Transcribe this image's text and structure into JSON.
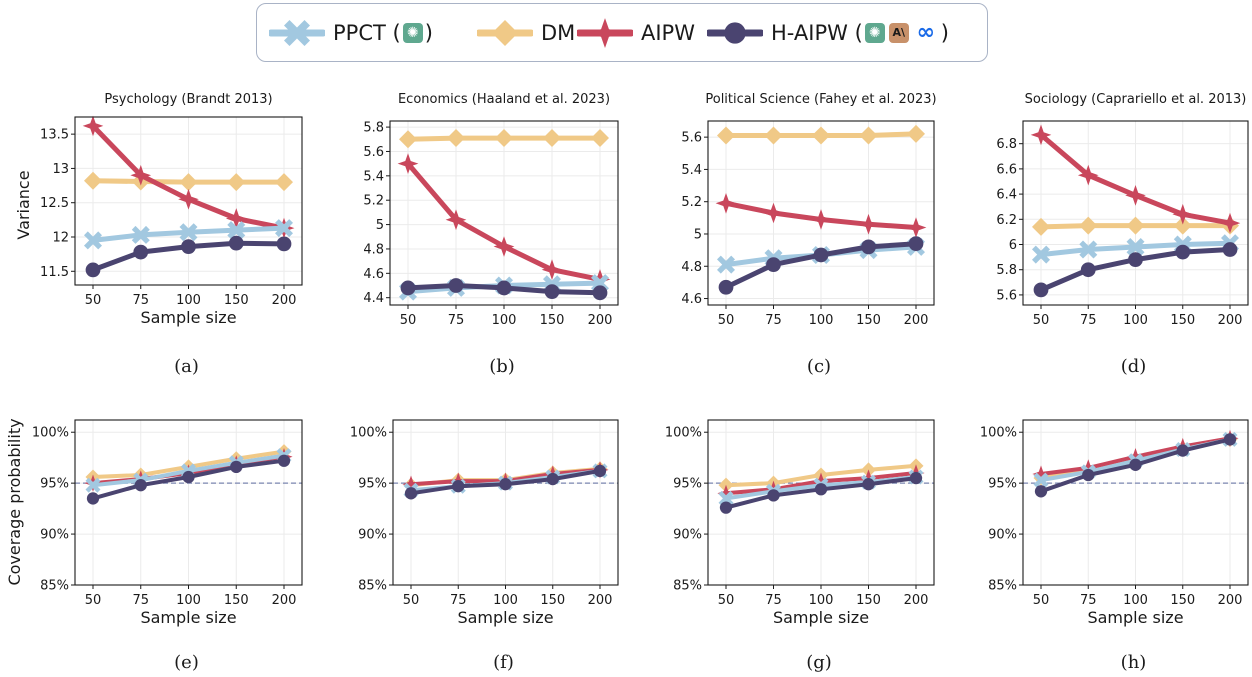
{
  "legend": {
    "items": [
      {
        "label": "PPCT (",
        "suffix": ")",
        "color": "#a2c8e0",
        "marker": "x",
        "logos": [
          "openai"
        ]
      },
      {
        "label": "DM",
        "suffix": "",
        "color": "#f0c987",
        "marker": "diamond",
        "logos": []
      },
      {
        "label": "AIPW",
        "suffix": "",
        "color": "#c9475c",
        "marker": "star",
        "logos": []
      },
      {
        "label": "H-AIPW (",
        "suffix": ")",
        "color": "#4a4470",
        "marker": "circle",
        "logos": [
          "openai",
          "anthropic",
          "meta"
        ]
      }
    ],
    "logo_text": {
      "openai": "✺",
      "anthropic": "A\\",
      "meta": "∞"
    },
    "logo_colors": {
      "openai": "#5fa88f",
      "anthropic": "#c8916a",
      "meta": "#1b6be8"
    }
  },
  "axis_labels": {
    "xlabel": "Sample size",
    "ylabel_top": "Variance",
    "ylabel_bottom": "Coverage probability"
  },
  "chart_data": [
    {
      "type": "line",
      "panel": "(a)",
      "title": "Psychology (Brandt 2013)",
      "row": "variance",
      "categories": [
        "50",
        "75",
        "100",
        "150",
        "200"
      ],
      "ylim": [
        11.3,
        13.75
      ],
      "yticks": [
        11.5,
        12,
        12.5,
        13,
        13.5
      ],
      "yticklabels": [
        "11.5",
        "12",
        "12.5",
        "13",
        "13.5"
      ],
      "grid": true,
      "show_xlabel": true,
      "series": [
        {
          "name": "DM",
          "values": [
            12.82,
            12.81,
            12.8,
            12.8,
            12.8
          ]
        },
        {
          "name": "AIPW",
          "values": [
            13.62,
            12.9,
            12.55,
            12.27,
            12.13
          ]
        },
        {
          "name": "PPCT",
          "values": [
            11.95,
            12.03,
            12.07,
            12.1,
            12.13
          ]
        },
        {
          "name": "H-AIPW",
          "values": [
            11.52,
            11.78,
            11.86,
            11.91,
            11.9
          ]
        }
      ]
    },
    {
      "type": "line",
      "panel": "(b)",
      "title": "Economics (Haaland et al. 2023)",
      "row": "variance",
      "categories": [
        "50",
        "75",
        "100",
        "150",
        "200"
      ],
      "ylim": [
        4.34,
        5.85
      ],
      "yticks": [
        4.4,
        4.6,
        4.8,
        5.0,
        5.2,
        5.4,
        5.6,
        5.8
      ],
      "yticklabels": [
        "4.4",
        "4.6",
        "4.8",
        "5",
        "5.2",
        "5.4",
        "5.6",
        "5.8"
      ],
      "grid": true,
      "show_xlabel": false,
      "series": [
        {
          "name": "DM",
          "values": [
            5.7,
            5.71,
            5.71,
            5.71,
            5.71
          ]
        },
        {
          "name": "AIPW",
          "values": [
            5.5,
            5.04,
            4.82,
            4.63,
            4.55
          ]
        },
        {
          "name": "PPCT",
          "values": [
            4.45,
            4.48,
            4.5,
            4.51,
            4.52
          ]
        },
        {
          "name": "H-AIPW",
          "values": [
            4.48,
            4.5,
            4.48,
            4.45,
            4.44
          ]
        }
      ]
    },
    {
      "type": "line",
      "panel": "(c)",
      "title": "Political Science (Fahey et al. 2023)",
      "row": "variance",
      "categories": [
        "50",
        "75",
        "100",
        "150",
        "200"
      ],
      "ylim": [
        4.56,
        5.7
      ],
      "yticks": [
        4.6,
        4.8,
        5.0,
        5.2,
        5.4,
        5.6
      ],
      "yticklabels": [
        "4.6",
        "4.8",
        "5",
        "5.2",
        "5.4",
        "5.6"
      ],
      "grid": true,
      "show_xlabel": false,
      "series": [
        {
          "name": "DM",
          "values": [
            5.61,
            5.61,
            5.61,
            5.61,
            5.62
          ]
        },
        {
          "name": "AIPW",
          "values": [
            5.19,
            5.13,
            5.09,
            5.06,
            5.04
          ]
        },
        {
          "name": "PPCT",
          "values": [
            4.81,
            4.85,
            4.87,
            4.9,
            4.92
          ]
        },
        {
          "name": "H-AIPW",
          "values": [
            4.67,
            4.81,
            4.87,
            4.92,
            4.94
          ]
        }
      ]
    },
    {
      "type": "line",
      "panel": "(d)",
      "title": "Sociology (Caprariello et al. 2013)",
      "row": "variance",
      "categories": [
        "50",
        "75",
        "100",
        "150",
        "200"
      ],
      "ylim": [
        5.52,
        6.98
      ],
      "yticks": [
        5.6,
        5.8,
        6.0,
        6.2,
        6.4,
        6.6,
        6.8
      ],
      "yticklabels": [
        "5.6",
        "5.8",
        "6",
        "6.2",
        "6.4",
        "6.6",
        "6.8"
      ],
      "grid": true,
      "show_xlabel": false,
      "series": [
        {
          "name": "DM",
          "values": [
            6.14,
            6.15,
            6.15,
            6.15,
            6.15
          ]
        },
        {
          "name": "AIPW",
          "values": [
            6.87,
            6.55,
            6.39,
            6.24,
            6.17
          ]
        },
        {
          "name": "PPCT",
          "values": [
            5.92,
            5.96,
            5.98,
            6.0,
            6.01
          ]
        },
        {
          "name": "H-AIPW",
          "values": [
            5.64,
            5.8,
            5.88,
            5.94,
            5.96
          ]
        }
      ]
    },
    {
      "type": "line",
      "panel": "(e)",
      "title": "",
      "row": "coverage",
      "categories": [
        "50",
        "75",
        "100",
        "150",
        "200"
      ],
      "ylim": [
        85,
        101.2
      ],
      "yticks": [
        85,
        90,
        95,
        100
      ],
      "yticklabels": [
        "85%",
        "90%",
        "95%",
        "100%"
      ],
      "grid": true,
      "show_xlabel": true,
      "reference_line": 95,
      "series": [
        {
          "name": "DM",
          "values": [
            95.6,
            95.8,
            96.6,
            97.4,
            98.1
          ]
        },
        {
          "name": "AIPW",
          "values": [
            95.0,
            95.4,
            96.0,
            96.9,
            97.6
          ]
        },
        {
          "name": "PPCT",
          "values": [
            94.8,
            95.3,
            96.2,
            97.0,
            97.7
          ]
        },
        {
          "name": "H-AIPW",
          "values": [
            93.5,
            94.8,
            95.6,
            96.6,
            97.2
          ]
        }
      ]
    },
    {
      "type": "line",
      "panel": "(f)",
      "title": "",
      "row": "coverage",
      "categories": [
        "50",
        "75",
        "100",
        "150",
        "200"
      ],
      "ylim": [
        85,
        101.2
      ],
      "yticks": [
        85,
        90,
        95,
        100
      ],
      "yticklabels": [
        "85%",
        "90%",
        "95%",
        "100%"
      ],
      "grid": true,
      "show_xlabel": true,
      "reference_line": 95,
      "series": [
        {
          "name": "DM",
          "values": [
            94.8,
            95.3,
            95.3,
            96.0,
            96.4
          ]
        },
        {
          "name": "AIPW",
          "values": [
            94.9,
            95.2,
            95.2,
            95.9,
            96.3
          ]
        },
        {
          "name": "PPCT",
          "values": [
            94.3,
            94.7,
            95.0,
            95.6,
            96.2
          ]
        },
        {
          "name": "H-AIPW",
          "values": [
            94.0,
            94.7,
            94.9,
            95.4,
            96.2
          ]
        }
      ]
    },
    {
      "type": "line",
      "panel": "(g)",
      "title": "",
      "row": "coverage",
      "categories": [
        "50",
        "75",
        "100",
        "150",
        "200"
      ],
      "ylim": [
        85,
        101.2
      ],
      "yticks": [
        85,
        90,
        95,
        100
      ],
      "yticklabels": [
        "85%",
        "90%",
        "95%",
        "100%"
      ],
      "grid": true,
      "show_xlabel": true,
      "reference_line": 95,
      "series": [
        {
          "name": "DM",
          "values": [
            94.8,
            95.0,
            95.8,
            96.3,
            96.7
          ]
        },
        {
          "name": "AIPW",
          "values": [
            94.0,
            94.4,
            95.2,
            95.5,
            96.0
          ]
        },
        {
          "name": "PPCT",
          "values": [
            93.5,
            94.2,
            94.8,
            95.1,
            95.6
          ]
        },
        {
          "name": "H-AIPW",
          "values": [
            92.6,
            93.8,
            94.4,
            94.9,
            95.5
          ]
        }
      ]
    },
    {
      "type": "line",
      "panel": "(h)",
      "title": "",
      "row": "coverage",
      "categories": [
        "50",
        "75",
        "100",
        "150",
        "200"
      ],
      "ylim": [
        85,
        101.2
      ],
      "yticks": [
        85,
        90,
        95,
        100
      ],
      "yticklabels": [
        "85%",
        "90%",
        "95%",
        "100%"
      ],
      "grid": true,
      "show_xlabel": true,
      "reference_line": 95,
      "series": [
        {
          "name": "DM",
          "values": [
            95.5,
            96.2,
            97.2,
            98.4,
            99.3
          ]
        },
        {
          "name": "AIPW",
          "values": [
            95.9,
            96.5,
            97.6,
            98.6,
            99.4
          ]
        },
        {
          "name": "PPCT",
          "values": [
            95.3,
            96.1,
            97.2,
            98.3,
            99.3
          ]
        },
        {
          "name": "H-AIPW",
          "values": [
            94.2,
            95.8,
            96.8,
            98.2,
            99.3
          ]
        }
      ]
    }
  ]
}
